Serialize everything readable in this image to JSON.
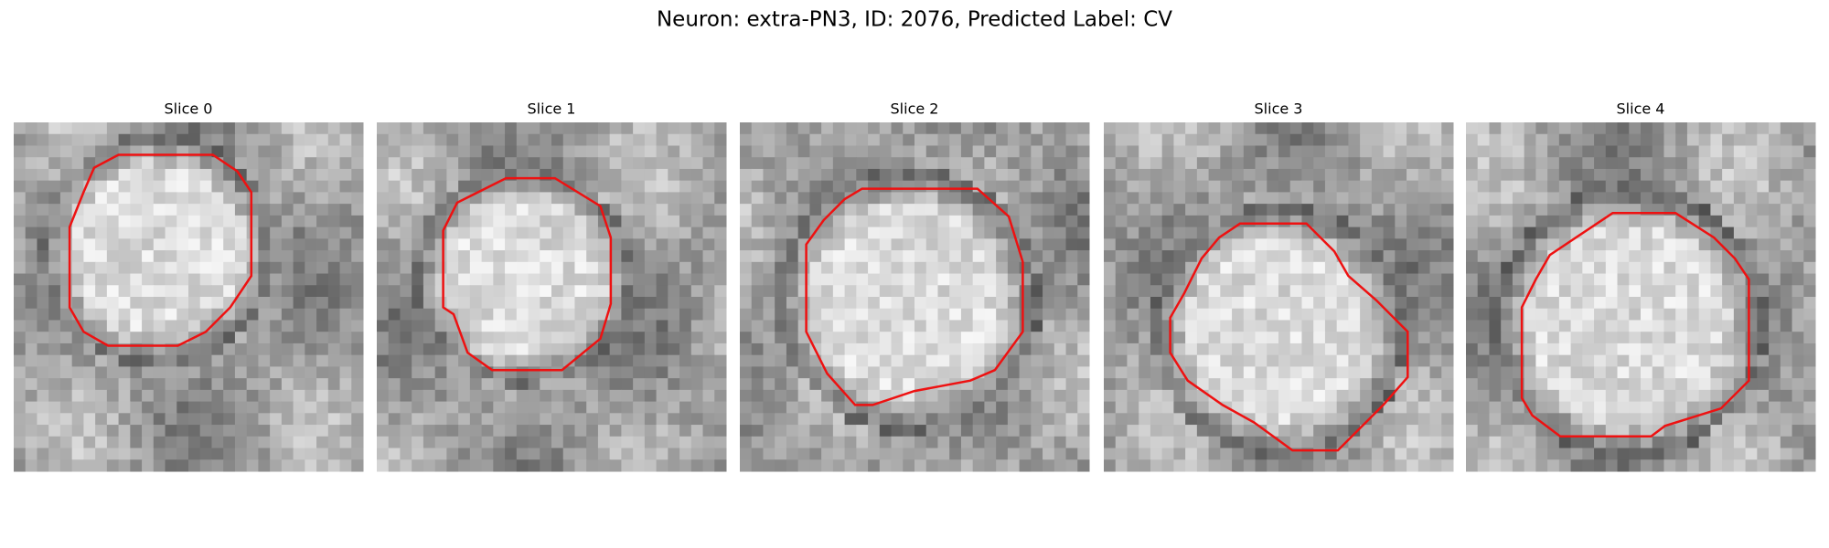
{
  "title": "Neuron: extra-PN3, ID: 2076, Predicted Label: CV",
  "panels": [
    {
      "title": "Slice 0"
    },
    {
      "title": "Slice 1"
    },
    {
      "title": "Slice 2"
    },
    {
      "title": "Slice 3"
    },
    {
      "title": "Slice 4"
    }
  ]
}
